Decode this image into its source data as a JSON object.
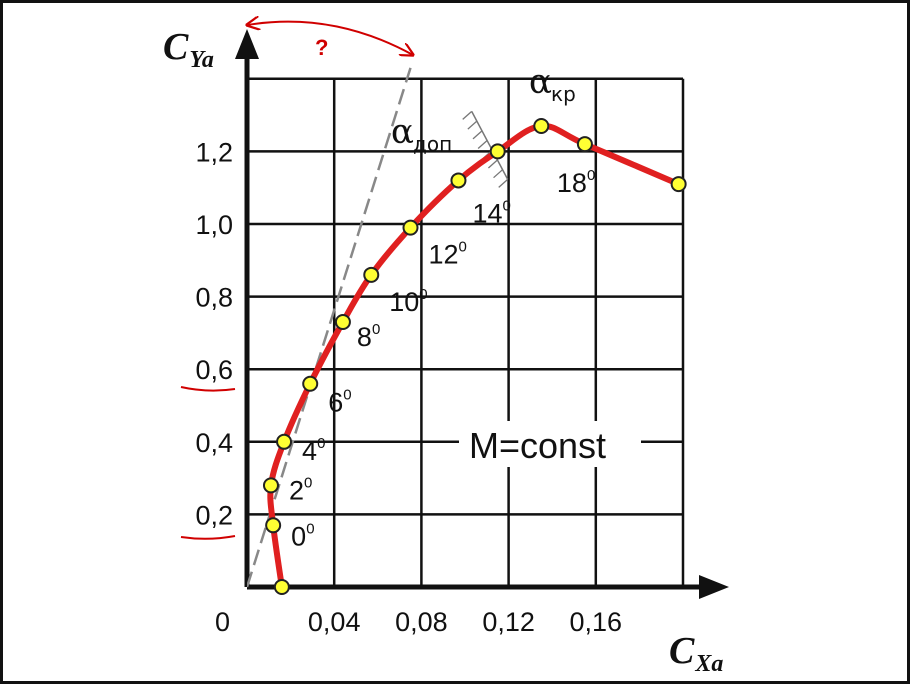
{
  "chart_data": {
    "type": "line",
    "xlabel": "C",
    "xlabel_sub": "Xa",
    "ylabel": "C",
    "ylabel_sub": "Ya",
    "origin_label": "0",
    "xlim": [
      0,
      0.196
    ],
    "ylim": [
      0,
      1.4
    ],
    "x_ticks": [
      0.04,
      0.08,
      0.12,
      0.16
    ],
    "x_tick_labels": [
      "0,04",
      "0,08",
      "0,12",
      "0,16"
    ],
    "y_ticks": [
      0.2,
      0.4,
      0.6,
      0.8,
      1.0,
      1.2
    ],
    "y_tick_labels": [
      "0,2",
      "0,4",
      "0,6",
      "0,8",
      "1,0",
      "1,2"
    ],
    "grid": true,
    "series": [
      {
        "points": [
          {
            "x": 0.016,
            "y": 0.0
          },
          {
            "x": 0.012,
            "y": 0.17
          },
          {
            "x": 0.011,
            "y": 0.28
          },
          {
            "x": 0.017,
            "y": 0.4
          },
          {
            "x": 0.029,
            "y": 0.56
          },
          {
            "x": 0.044,
            "y": 0.73
          },
          {
            "x": 0.057,
            "y": 0.86
          },
          {
            "x": 0.075,
            "y": 0.99
          },
          {
            "x": 0.097,
            "y": 1.12
          },
          {
            "x": 0.115,
            "y": 1.2
          },
          {
            "x": 0.135,
            "y": 1.27
          },
          {
            "x": 0.155,
            "y": 1.22
          },
          {
            "x": 0.198,
            "y": 1.11
          }
        ]
      }
    ],
    "point_labels": [
      {
        "x": 0.012,
        "y": 0.17,
        "text": "0",
        "sup": "0"
      },
      {
        "x": 0.011,
        "y": 0.28,
        "text": "2",
        "sup": "0"
      },
      {
        "x": 0.017,
        "y": 0.4,
        "text": "4",
        "sup": "0"
      },
      {
        "x": 0.029,
        "y": 0.56,
        "text": "6",
        "sup": "0"
      },
      {
        "x": 0.044,
        "y": 0.73,
        "text": "8",
        "sup": "0"
      },
      {
        "x": 0.057,
        "y": 0.86,
        "text": "10",
        "sup": "0"
      },
      {
        "x": 0.075,
        "y": 0.99,
        "text": "12",
        "sup": "0"
      },
      {
        "x": 0.097,
        "y": 1.12,
        "text": "14",
        "sup": "0"
      },
      {
        "x": 0.155,
        "y": 1.22,
        "text": "18",
        "sup": "0"
      }
    ],
    "annotations": {
      "alpha_dop": {
        "symbol": "α",
        "sub": "доп",
        "x": 0.115,
        "y": 1.2
      },
      "alpha_kr": {
        "symbol": "α",
        "sub": "кр",
        "x": 0.135,
        "y": 1.27
      },
      "mach": "M=const",
      "question": "?"
    },
    "tangent_line": {
      "from": {
        "x": 0.0,
        "y": 0.0
      },
      "to": {
        "x": 0.075,
        "y": 1.43
      }
    },
    "colors": {
      "curve": "#e02020",
      "marker_fill": "#ffff33",
      "marker_stroke": "#222222",
      "grid": "#111111",
      "tangent": "#888888",
      "red_annotation": "#d00000"
    }
  }
}
